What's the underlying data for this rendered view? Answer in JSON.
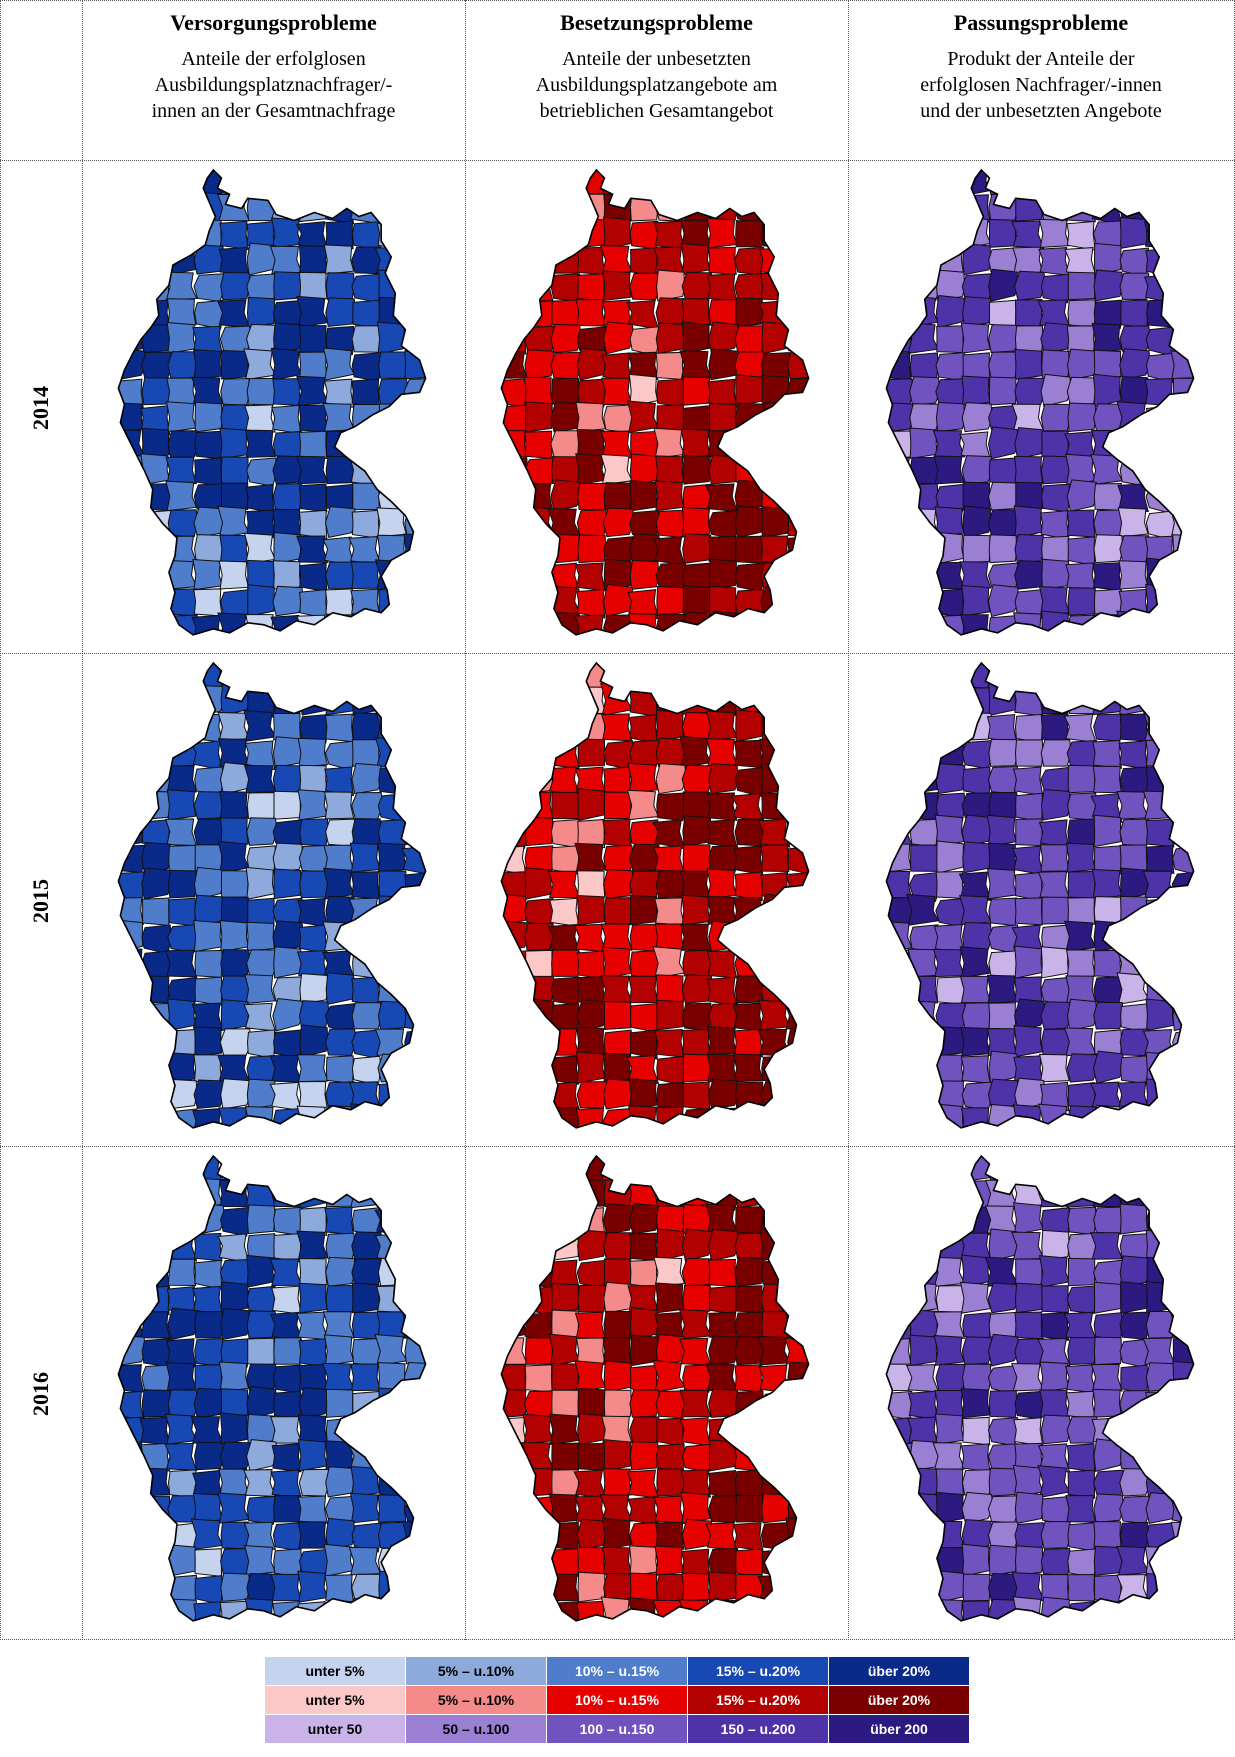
{
  "columns": [
    {
      "title": "Versorgungsprobleme",
      "desc": [
        "Anteile der erfolglosen",
        "Ausbildungsplatznachfrager/-",
        "innen an der Gesamtnachfrage"
      ]
    },
    {
      "title": "Besetzungsprobleme",
      "desc": [
        "Anteile der unbesetzten",
        "Ausbildungsplatzangebote am",
        "betrieblichen Gesamtangebot"
      ]
    },
    {
      "title": "Passungsprobleme",
      "desc": [
        "Produkt der Anteile der",
        "erfolglosen Nachfrager/-innen",
        "und der unbesetzten Angebote"
      ]
    }
  ],
  "years": [
    "2014",
    "2015",
    "2016"
  ],
  "scales": [
    {
      "colors": [
        "#c5d3ef",
        "#8eaadc",
        "#4f7dcb",
        "#1748b4",
        "#0a2a8a"
      ],
      "text_colors": [
        "#000000",
        "#000000",
        "#ffffff",
        "#ffffff",
        "#ffffff"
      ]
    },
    {
      "colors": [
        "#fbc7c7",
        "#f58a8a",
        "#e60000",
        "#b30000",
        "#7a0000"
      ],
      "text_colors": [
        "#000000",
        "#000000",
        "#ffffff",
        "#ffffff",
        "#ffffff"
      ]
    },
    {
      "colors": [
        "#c9b3e8",
        "#9b7fd3",
        "#7153bf",
        "#4d32a8",
        "#2c1a80"
      ],
      "text_colors": [
        "#000000",
        "#000000",
        "#ffffff",
        "#ffffff",
        "#ffffff"
      ]
    }
  ],
  "legend": [
    [
      "unter 5%",
      "5% – u.10%",
      "10% – u.15%",
      "15% – u.20%",
      "über 20%"
    ],
    [
      "unter 5%",
      "5% – u.10%",
      "10% – u.15%",
      "15% – u.20%",
      "über 20%"
    ],
    [
      "unter 50",
      "50 – u.100",
      "100 – u.150",
      "150 – u.200",
      "über 200"
    ]
  ]
}
